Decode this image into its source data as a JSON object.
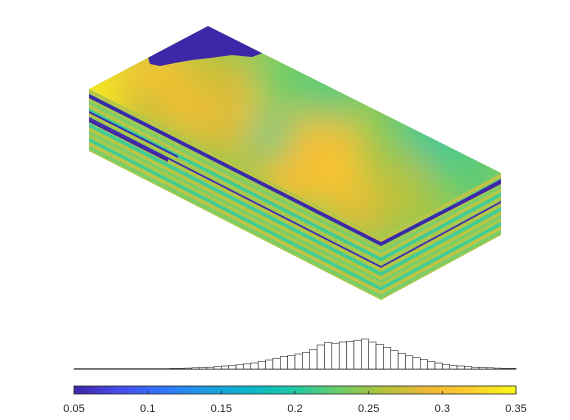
{
  "figure": {
    "plot_type": "3d-cell-block",
    "colormap": "parula",
    "background_color": "#ffffff"
  },
  "chart_data": [
    {
      "type": "heatmap",
      "title": "",
      "xlabel": "",
      "ylabel": "",
      "description_of_values": "porosity-like scalar field painted on layered 3D grid cells",
      "clim": [
        0.05,
        0.35
      ],
      "top_surface_color_range": [
        0.18,
        0.34
      ],
      "dark_blue_value": 0.05
    },
    {
      "type": "bar",
      "title": "",
      "xlabel": "",
      "ylabel": "",
      "xlim": [
        0.05,
        0.35
      ],
      "bin_width": 0.005,
      "bin_centers": [
        0.0525,
        0.0575,
        0.0625,
        0.0675,
        0.0725,
        0.0775,
        0.0825,
        0.0875,
        0.0925,
        0.0975,
        0.1025,
        0.1075,
        0.1125,
        0.1175,
        0.1225,
        0.1275,
        0.1325,
        0.1375,
        0.1425,
        0.1475,
        0.1525,
        0.1575,
        0.1625,
        0.1675,
        0.1725,
        0.1775,
        0.1825,
        0.1875,
        0.1925,
        0.1975,
        0.2025,
        0.2075,
        0.2125,
        0.2175,
        0.2225,
        0.2275,
        0.2325,
        0.2375,
        0.2425,
        0.2475,
        0.2525,
        0.2575,
        0.2625,
        0.2675,
        0.2725,
        0.2775,
        0.2825,
        0.2875,
        0.2925,
        0.2975,
        0.3025,
        0.3075,
        0.3125,
        0.3175,
        0.3225,
        0.3275,
        0.3325,
        0.3375,
        0.3425,
        0.3475
      ],
      "values": [
        0.01,
        0.01,
        0.01,
        0.01,
        0.01,
        0.01,
        0.01,
        0.01,
        0.01,
        0.01,
        0.01,
        0.01,
        0.01,
        0.02,
        0.02,
        0.03,
        0.04,
        0.05,
        0.06,
        0.08,
        0.1,
        0.12,
        0.14,
        0.17,
        0.2,
        0.25,
        0.3,
        0.36,
        0.42,
        0.45,
        0.5,
        0.55,
        0.65,
        0.8,
        0.88,
        0.86,
        0.9,
        0.92,
        0.96,
        1.0,
        0.9,
        0.82,
        0.72,
        0.62,
        0.52,
        0.44,
        0.38,
        0.32,
        0.25,
        0.2,
        0.15,
        0.12,
        0.1,
        0.08,
        0.06,
        0.05,
        0.04,
        0.03,
        0.02,
        0.02
      ]
    },
    {
      "type": "colorbar",
      "colormap": "parula",
      "range": [
        0.05,
        0.35
      ],
      "ticks": [
        0.05,
        0.1,
        0.15,
        0.2,
        0.25,
        0.3,
        0.35
      ],
      "tick_labels": [
        "0.05",
        "0.1",
        "0.15",
        "0.2",
        "0.25",
        "0.3",
        "0.35"
      ]
    }
  ]
}
